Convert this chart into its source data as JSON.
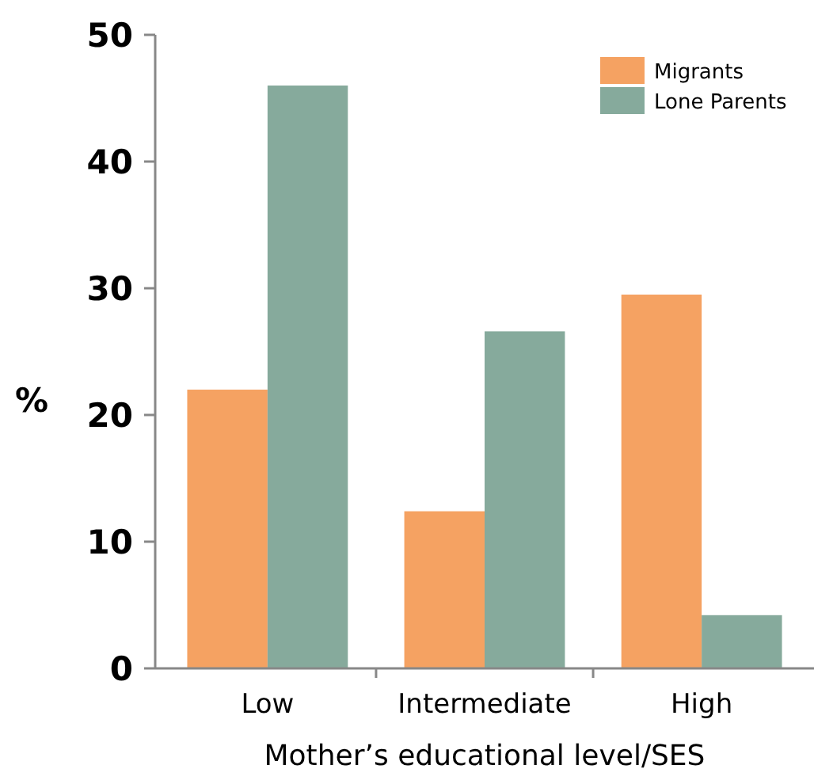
{
  "chart_data": {
    "type": "bar",
    "xlabel": "Mother’s educational level/SES",
    "ylabel": "%",
    "categories": [
      "Low",
      "Intermediate",
      "High"
    ],
    "series": [
      {
        "name": "Migrants",
        "color": "#f5a262",
        "values": [
          22,
          12.4,
          29.5
        ]
      },
      {
        "name": "Lone Parents",
        "color": "#86aa9c",
        "values": [
          46,
          26.6,
          4.2
        ]
      }
    ],
    "ylim": [
      0,
      50
    ],
    "yticks": [
      0,
      10,
      20,
      30,
      40,
      50
    ],
    "legend": "top right"
  }
}
